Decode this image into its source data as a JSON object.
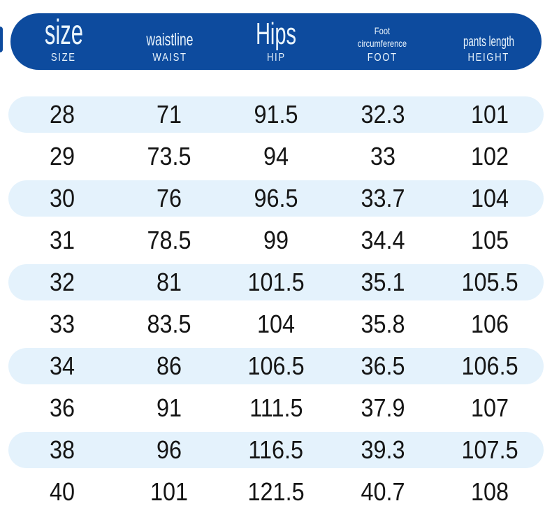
{
  "chart_data": {
    "type": "table",
    "columns": [
      {
        "title": "size",
        "subtitle": "SIZE"
      },
      {
        "title": "waistline",
        "subtitle": "WAIST"
      },
      {
        "title": "Hips",
        "subtitle": "HIP"
      },
      {
        "title": "Foot circumference",
        "title_lines": [
          "Foot",
          "circumference"
        ],
        "subtitle": "FOOT"
      },
      {
        "title": "pants length",
        "subtitle": "HEIGHT"
      }
    ],
    "rows": [
      [
        "28",
        "71",
        "91.5",
        "32.3",
        "101"
      ],
      [
        "29",
        "73.5",
        "94",
        "33",
        "102"
      ],
      [
        "30",
        "76",
        "96.5",
        "33.7",
        "104"
      ],
      [
        "31",
        "78.5",
        "99",
        "34.4",
        "105"
      ],
      [
        "32",
        "81",
        "101.5",
        "35.1",
        "105.5"
      ],
      [
        "33",
        "83.5",
        "104",
        "35.8",
        "106"
      ],
      [
        "34",
        "86",
        "106.5",
        "36.5",
        "106.5"
      ],
      [
        "36",
        "91",
        "111.5",
        "37.9",
        "107"
      ],
      [
        "38",
        "96",
        "116.5",
        "39.3",
        "107.5"
      ],
      [
        "40",
        "101",
        "121.5",
        "40.7",
        "108"
      ]
    ],
    "layout": {
      "stripe_rows": "odd rows starting with first",
      "legend": "none",
      "grid": "off"
    }
  },
  "colors": {
    "header_bg": "#0d4b9e",
    "header_text": "#e9f4fc",
    "stripe_bg": "#e4f2fc",
    "cell_text": "#151515",
    "page_bg": "#ffffff"
  }
}
